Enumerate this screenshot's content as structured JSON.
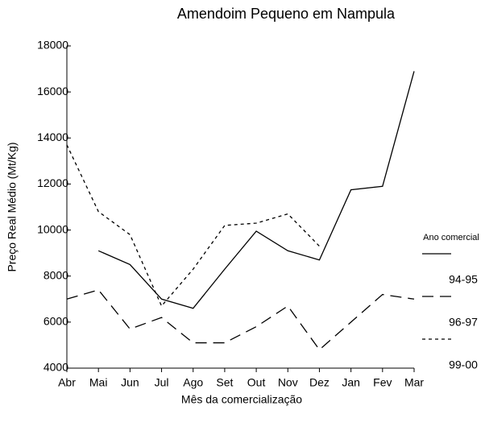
{
  "chart_data": {
    "type": "line",
    "title": "Amendoim Pequeno em Nampula",
    "x_label": "Mês da comercialização",
    "y_label": "Preço Real Médio (Mt/Kg)",
    "categories": [
      "Abr",
      "Mai",
      "Jun",
      "Jul",
      "Ago",
      "Set",
      "Out",
      "Nov",
      "Dez",
      "Jan",
      "Fev",
      "Mar"
    ],
    "ylim": [
      4000,
      18000
    ],
    "yticks": [
      4000,
      6000,
      8000,
      10000,
      12000,
      14000,
      16000,
      18000
    ],
    "legend_title": "Ano comercial",
    "legend": "right",
    "series": [
      {
        "name": "94-95",
        "color": "#000000",
        "dash": "solid",
        "values": [
          null,
          9100,
          8500,
          7000,
          6600,
          8300,
          9950,
          9100,
          8700,
          11750,
          11900,
          16900
        ]
      },
      {
        "name": "96-97",
        "color": "#000000",
        "dash": "long",
        "values": [
          7000,
          7400,
          5700,
          6200,
          5100,
          5100,
          5800,
          6700,
          4800,
          6000,
          7200,
          7000
        ]
      },
      {
        "name": "99-00",
        "color": "#000000",
        "dash": "short",
        "values": [
          13700,
          10800,
          9800,
          6700,
          8300,
          10200,
          10300,
          10700,
          9300,
          null,
          null,
          null
        ]
      }
    ]
  }
}
